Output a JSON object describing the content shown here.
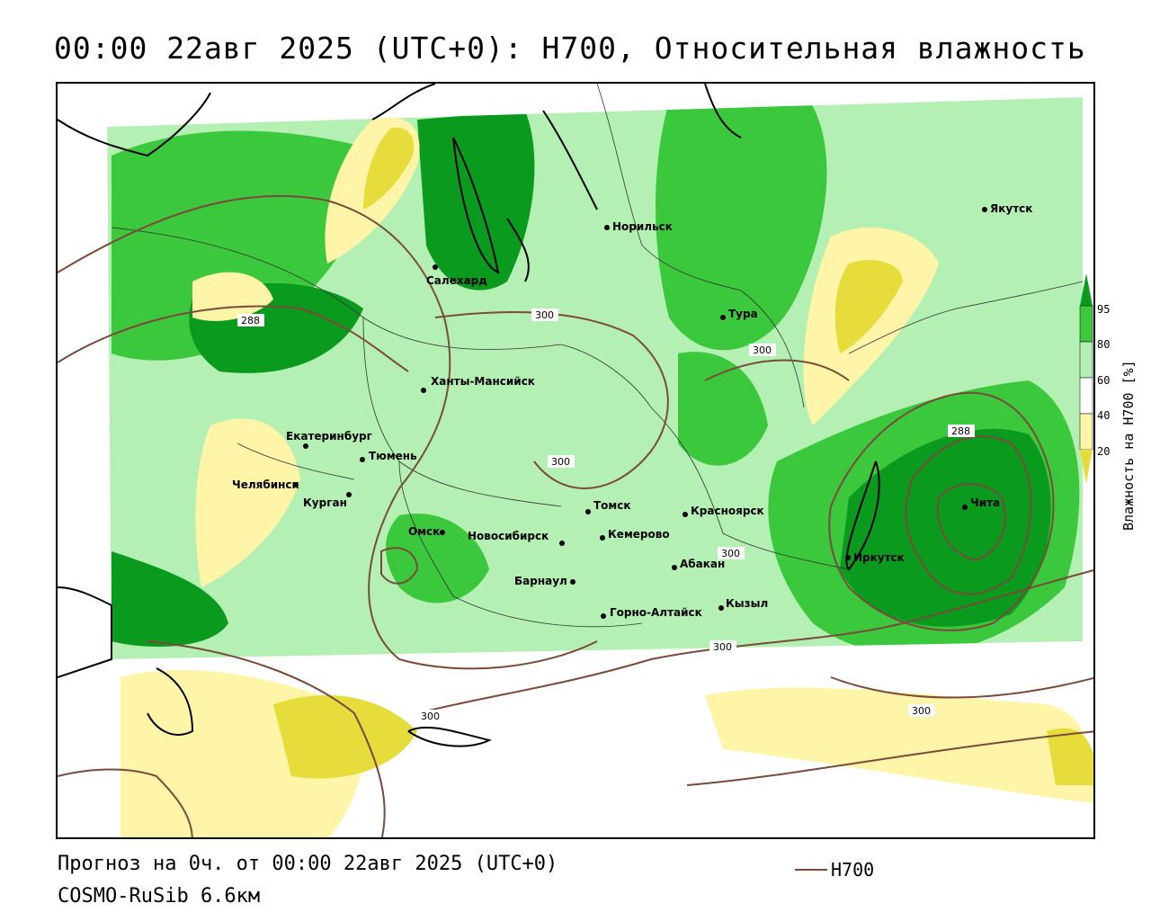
{
  "title": "00:00 22авг 2025 (UTC+0): H700, Относительная влажность",
  "footer": {
    "forecast": "Прогноз на 0ч. от 00:00 22авг 2025 (UTC+0)",
    "model": "COSMO-RuSib 6.6км"
  },
  "legend": {
    "line_label": "H700",
    "line_color": "#7a4a3a",
    "colorbar_title": "Влажность на H700 [%]",
    "ticks": [
      "95",
      "80",
      "60",
      "40",
      "20"
    ],
    "colors": {
      "dark_green": "#0a9a1e",
      "green": "#3cc83c",
      "light_green": "#b4f0b4",
      "white": "#ffffff",
      "light_yellow": "#fff5a8",
      "yellow": "#e6dc3c"
    }
  },
  "cities": [
    {
      "name": "Норильск"
    },
    {
      "name": "Якутск"
    },
    {
      "name": "Салехард"
    },
    {
      "name": "Тура"
    },
    {
      "name": "Ханты-Мансийск"
    },
    {
      "name": "Екатеринбург"
    },
    {
      "name": "Тюмень"
    },
    {
      "name": "Челябинск"
    },
    {
      "name": "Курган"
    },
    {
      "name": "Томск"
    },
    {
      "name": "Красноярск"
    },
    {
      "name": "Омск"
    },
    {
      "name": "Новосибирск"
    },
    {
      "name": "Кемерово"
    },
    {
      "name": "Абакан"
    },
    {
      "name": "Иркутск"
    },
    {
      "name": "Чита"
    },
    {
      "name": "Барнаул"
    },
    {
      "name": "Горно-Алтайск"
    },
    {
      "name": "Кызыл"
    }
  ],
  "contour_labels": [
    "288",
    "300",
    "300",
    "300",
    "300",
    "300",
    "300",
    "288",
    "300"
  ]
}
